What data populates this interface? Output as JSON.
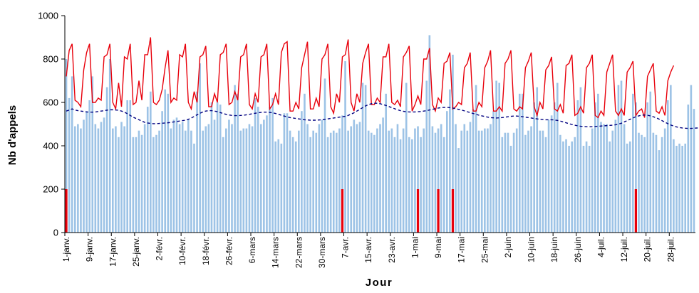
{
  "chart_data": {
    "type": "bar",
    "title": "",
    "xlabel": "Jour",
    "ylabel": "Nb d'appels",
    "ylim": [
      0,
      1000
    ],
    "yticks": [
      0,
      200,
      400,
      600,
      800,
      1000
    ],
    "grid": false,
    "legend": "none",
    "x_tick_labels": [
      "1-janv.",
      "9-janv.",
      "17-janv.",
      "25-janv.",
      "2-févr.",
      "10-févr.",
      "18-févr.",
      "26-févr.",
      "6-mars",
      "14-mars",
      "22-mars",
      "30-mars",
      "7-avr.",
      "15-avr.",
      "23-avr.",
      "1-mai",
      "9-mai",
      "17-mai",
      "25-mai",
      "2-juin",
      "10-juin",
      "18-juin",
      "26-juin",
      "4-juil.",
      "12-juil.",
      "20-juil.",
      "28-juil."
    ],
    "series": [
      {
        "kind": "bar",
        "color": "#9DC3E6",
        "values": [
          800,
          620,
          720,
          490,
          500,
          480,
          520,
          560,
          610,
          720,
          500,
          480,
          510,
          530,
          670,
          800,
          480,
          490,
          440,
          510,
          490,
          610,
          610,
          440,
          440,
          470,
          450,
          500,
          580,
          650,
          440,
          450,
          470,
          560,
          660,
          640,
          480,
          520,
          530,
          500,
          510,
          470,
          520,
          470,
          410,
          650,
          780,
          470,
          490,
          500,
          600,
          520,
          600,
          590,
          440,
          480,
          520,
          500,
          680,
          640,
          470,
          480,
          480,
          500,
          490,
          620,
          580,
          500,
          520,
          540,
          580,
          620,
          420,
          430,
          410,
          550,
          550,
          470,
          440,
          420,
          470,
          560,
          640,
          500,
          440,
          470,
          460,
          500,
          520,
          710,
          440,
          460,
          470,
          460,
          480,
          540,
          790,
          470,
          490,
          520,
          500,
          510,
          690,
          680,
          470,
          460,
          450,
          480,
          500,
          530,
          640,
          470,
          480,
          440,
          500,
          430,
          480,
          690,
          440,
          430,
          480,
          490,
          440,
          480,
          700,
          910,
          490,
          460,
          480,
          500,
          440,
          560,
          660,
          820,
          500,
          390,
          470,
          500,
          470,
          510,
          570,
          680,
          470,
          470,
          480,
          480,
          500,
          560,
          700,
          690,
          440,
          460,
          460,
          400,
          460,
          480,
          640,
          640,
          450,
          470,
          490,
          600,
          670,
          470,
          470,
          440,
          520,
          540,
          600,
          690,
          450,
          420,
          430,
          400,
          420,
          440,
          610,
          670,
          400,
          420,
          400,
          480,
          600,
          640,
          510,
          500,
          500,
          420,
          470,
          520,
          680,
          700,
          500,
          410,
          420,
          640,
          600,
          460,
          450,
          440,
          600,
          650,
          460,
          450,
          380,
          440,
          480,
          610,
          680,
          430,
          400,
          410,
          400,
          410,
          590,
          680,
          570
        ]
      },
      {
        "kind": "line",
        "color": "#E8000B",
        "values": [
          720,
          840,
          870,
          610,
          600,
          580,
          750,
          830,
          870,
          600,
          600,
          620,
          610,
          810,
          820,
          870,
          600,
          570,
          690,
          580,
          810,
          800,
          870,
          590,
          600,
          700,
          610,
          820,
          820,
          900,
          600,
          590,
          610,
          660,
          760,
          840,
          600,
          620,
          610,
          820,
          810,
          870,
          600,
          570,
          650,
          600,
          810,
          820,
          860,
          580,
          580,
          640,
          600,
          820,
          830,
          870,
          590,
          600,
          650,
          610,
          810,
          820,
          870,
          590,
          570,
          640,
          600,
          810,
          820,
          870,
          570,
          590,
          640,
          590,
          830,
          870,
          880,
          560,
          560,
          600,
          570,
          760,
          820,
          880,
          570,
          570,
          620,
          580,
          800,
          820,
          870,
          580,
          550,
          640,
          600,
          810,
          820,
          890,
          600,
          560,
          640,
          600,
          780,
          830,
          870,
          590,
          590,
          620,
          600,
          810,
          810,
          870,
          600,
          590,
          610,
          580,
          810,
          830,
          860,
          560,
          590,
          630,
          590,
          800,
          800,
          850,
          590,
          560,
          620,
          600,
          780,
          790,
          830,
          570,
          580,
          600,
          590,
          760,
          780,
          830,
          560,
          560,
          600,
          580,
          760,
          790,
          840,
          560,
          560,
          580,
          560,
          780,
          800,
          840,
          570,
          560,
          580,
          570,
          760,
          790,
          830,
          580,
          540,
          600,
          570,
          750,
          770,
          810,
          570,
          560,
          590,
          550,
          770,
          780,
          820,
          540,
          550,
          580,
          550,
          760,
          780,
          820,
          540,
          530,
          560,
          540,
          740,
          780,
          820,
          560,
          540,
          570,
          540,
          740,
          760,
          790,
          540,
          560,
          570,
          530,
          720,
          750,
          780,
          560,
          550,
          580,
          540,
          700,
          740,
          770
        ]
      },
      {
        "kind": "line",
        "color": "#000080",
        "dashed": true,
        "values": [
          560,
          565,
          570,
          565,
          562,
          560,
          558,
          556,
          555,
          555,
          556,
          558,
          560,
          562,
          564,
          566,
          566,
          565,
          564,
          560,
          555,
          548,
          540,
          532,
          526,
          520,
          514,
          508,
          505,
          503,
          502,
          502,
          503,
          504,
          505,
          506,
          508,
          510,
          512,
          514,
          516,
          518,
          522,
          528,
          535,
          543,
          550,
          556,
          560,
          562,
          562,
          560,
          557,
          553,
          549,
          545,
          542,
          540,
          539,
          539,
          540,
          541,
          543,
          545,
          548,
          550,
          552,
          554,
          555,
          555,
          554,
          552,
          549,
          545,
          541,
          537,
          533,
          530,
          528,
          526,
          524,
          522,
          520,
          519,
          518,
          518,
          518,
          519,
          520,
          522,
          524,
          526,
          528,
          530,
          532,
          534,
          536,
          540,
          546,
          552,
          560,
          568,
          576,
          584,
          590,
          594,
          596,
          596,
          594,
          590,
          586,
          581,
          576,
          571,
          566,
          562,
          559,
          557,
          556,
          556,
          556,
          557,
          558,
          560,
          562,
          565,
          568,
          571,
          574,
          576,
          577,
          577,
          576,
          574,
          571,
          568,
          565,
          561,
          557,
          553,
          549,
          545,
          541,
          538,
          535,
          532,
          530,
          529,
          528,
          529,
          530,
          532,
          534,
          536,
          537,
          537,
          536,
          534,
          532,
          530,
          528,
          526,
          524,
          522,
          521,
          520,
          520,
          520,
          519,
          517,
          514,
          510,
          506,
          502,
          498,
          495,
          492,
          490,
          489,
          488,
          488,
          488,
          489,
          490,
          491,
          492,
          493,
          494,
          495,
          497,
          500,
          504,
          510,
          516,
          522,
          528,
          534,
          538,
          541,
          542,
          541,
          538,
          534,
          529,
          523,
          516,
          509,
          502,
          496,
          491,
          487,
          484,
          482,
          481,
          480,
          480,
          481,
          482,
          483,
          484,
          485,
          486,
          487,
          488,
          489,
          490,
          491,
          492
        ]
      },
      {
        "kind": "marker",
        "color": "#E8000B",
        "days": [
          0,
          95,
          121,
          128,
          133,
          196
        ],
        "value": 200
      }
    ]
  }
}
